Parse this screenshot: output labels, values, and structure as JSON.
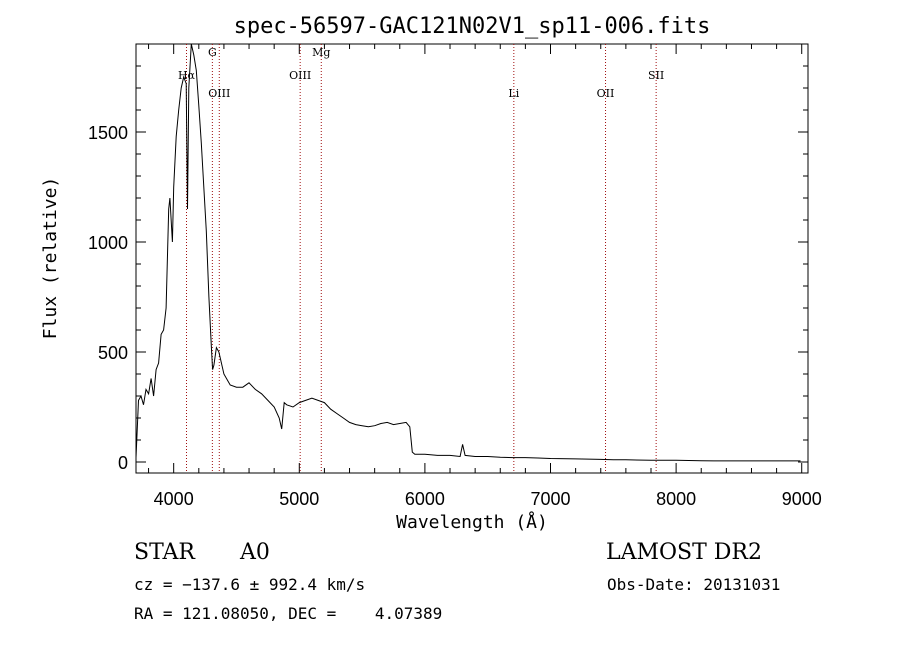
{
  "chart_data": {
    "type": "line",
    "title": "spec-56597-GAC121N02V1_sp11-006.fits",
    "xlabel": "Wavelength (Å)",
    "ylabel": "Flux (relative)",
    "xlim": [
      3700,
      9050
    ],
    "ylim": [
      -50,
      1900
    ],
    "xticks": [
      4000,
      5000,
      6000,
      7000,
      8000,
      9000
    ],
    "yticks": [
      0,
      500,
      1000,
      1500
    ],
    "grid": false,
    "series": [
      {
        "x": [
          3700,
          3720,
          3740,
          3760,
          3780,
          3800,
          3820,
          3840,
          3860,
          3880,
          3900,
          3920,
          3940,
          3960,
          3970,
          3990,
          4000,
          4020,
          4040,
          4060,
          4080,
          4100,
          4110,
          4120,
          4140,
          4160,
          4180,
          4200,
          4220,
          4240,
          4260,
          4280,
          4300,
          4310,
          4320,
          4340,
          4360,
          4400,
          4450,
          4500,
          4550,
          4600,
          4650,
          4700,
          4750,
          4800,
          4840,
          4860,
          4880,
          4900,
          4950,
          5000,
          5050,
          5100,
          5150,
          5200,
          5250,
          5300,
          5350,
          5400,
          5450,
          5500,
          5550,
          5600,
          5650,
          5700,
          5750,
          5800,
          5850,
          5880,
          5900,
          5920,
          5950,
          6000,
          6100,
          6200,
          6280,
          6300,
          6320,
          6400,
          6500,
          6600,
          6700,
          6800,
          6900,
          7000,
          7200,
          7400,
          7500,
          7600,
          7800,
          8000,
          8200,
          8300,
          8400,
          8500,
          8600,
          8700,
          8800,
          8900,
          8990
        ],
        "y": [
          20,
          280,
          300,
          260,
          330,
          310,
          380,
          300,
          420,
          450,
          580,
          600,
          700,
          1150,
          1200,
          1000,
          1250,
          1480,
          1600,
          1700,
          1750,
          1720,
          1150,
          1700,
          1900,
          1850,
          1780,
          1620,
          1450,
          1250,
          1050,
          750,
          520,
          420,
          440,
          520,
          500,
          400,
          350,
          340,
          340,
          360,
          330,
          310,
          280,
          250,
          200,
          150,
          270,
          260,
          250,
          270,
          280,
          290,
          280,
          270,
          240,
          220,
          200,
          180,
          170,
          165,
          160,
          165,
          175,
          180,
          170,
          175,
          180,
          160,
          45,
          35,
          35,
          35,
          30,
          30,
          25,
          80,
          30,
          25,
          25,
          22,
          20,
          20,
          18,
          16,
          14,
          12,
          10,
          10,
          8,
          8,
          6,
          5,
          5,
          5,
          5,
          5,
          5,
          5,
          5
        ]
      }
    ],
    "lines": [
      {
        "label": "Hα",
        "x": 4102,
        "label_y": 1740
      },
      {
        "label": "G",
        "x": 4308,
        "label_y": 1845
      },
      {
        "label": "OIII",
        "x": 4363,
        "label_y": 1660
      },
      {
        "label": "OIII",
        "x": 5007,
        "label_y": 1740
      },
      {
        "label": "Mg",
        "x": 5175,
        "label_y": 1845
      },
      {
        "label": "Li",
        "x": 6708,
        "label_y": 1660
      },
      {
        "label": "OII",
        "x": 7438,
        "label_y": 1660
      },
      {
        "label": "SII",
        "x": 7841,
        "label_y": 1740
      }
    ]
  },
  "info": {
    "object_type": "STAR",
    "subclass": "A0",
    "survey": "LAMOST DR2",
    "cz": "cz = −137.6 ± 992.4 km/s",
    "obs_date": "Obs-Date: 20131031",
    "coords": "RA = 121.08050, DEC =    4.07389"
  }
}
